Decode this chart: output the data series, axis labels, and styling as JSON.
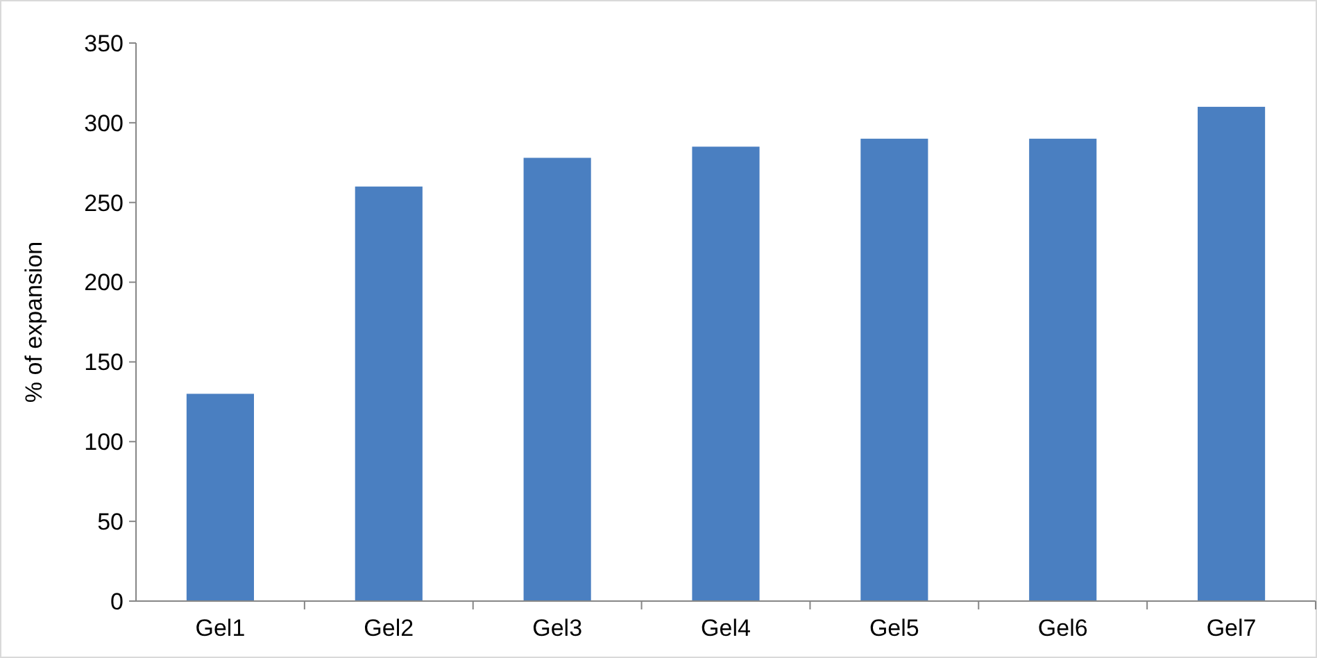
{
  "chart_data": {
    "type": "bar",
    "ylabel": "% of expansion",
    "categories": [
      "Gel1",
      "Gel2",
      "Gel3",
      "Gel4",
      "Gel5",
      "Gel6",
      "Gel7"
    ],
    "values": [
      130,
      260,
      278,
      285,
      290,
      290,
      310
    ],
    "color": "#4a7fc1",
    "ylim": [
      0,
      350
    ],
    "yticks": [
      0,
      50,
      100,
      150,
      200,
      250,
      300,
      350
    ],
    "grid": false
  }
}
